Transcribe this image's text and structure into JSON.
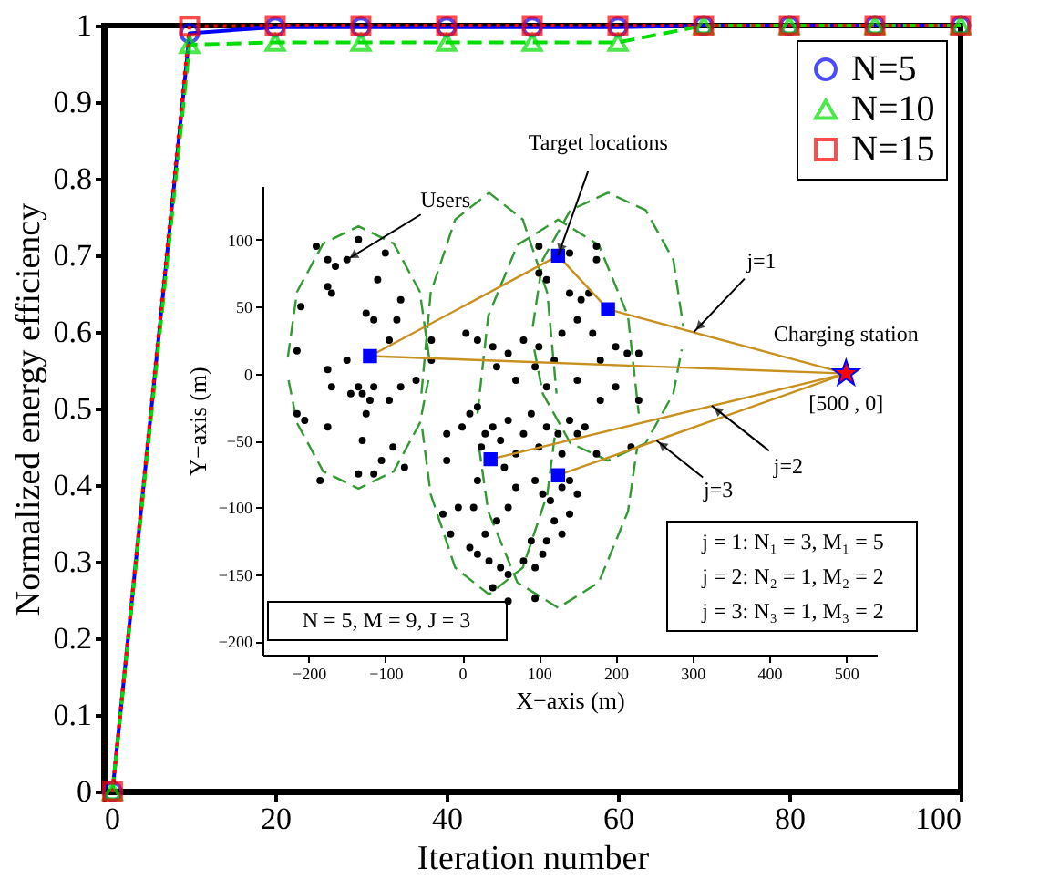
{
  "chart_data": [
    {
      "type": "line",
      "xlabel": "Iteration number",
      "ylabel": "Normalized energy efficiency",
      "x": [
        1,
        10,
        20,
        30,
        40,
        50,
        60,
        70,
        80,
        90,
        100
      ],
      "xlim": [
        0,
        100
      ],
      "xticks": [
        0,
        20,
        40,
        60,
        80,
        100
      ],
      "ylim": [
        0,
        1
      ],
      "yticks": [
        0,
        0.1,
        0.2,
        0.3,
        0.4,
        0.5,
        0.6,
        0.7,
        0.8,
        0.9,
        1
      ],
      "grid": false,
      "legend": "top right",
      "series": [
        {
          "name": "N=5",
          "color": "#0000ff",
          "marker": "circle",
          "line_style": "solid",
          "values": [
            0,
            0.99,
            0.998,
            0.998,
            0.998,
            0.998,
            0.998,
            1,
            1,
            1,
            1
          ]
        },
        {
          "name": "N=10",
          "color": "#00dd00",
          "marker": "triangle",
          "line_style": "dashed",
          "values": [
            0,
            0.975,
            0.978,
            0.978,
            0.978,
            0.978,
            0.978,
            1,
            1,
            1,
            1
          ]
        },
        {
          "name": "N=15",
          "color": "#ff0000",
          "marker": "square",
          "line_style": "dotted",
          "values": [
            0,
            0.999,
            1,
            1,
            1,
            1,
            1,
            1,
            1,
            1,
            1
          ]
        }
      ]
    },
    {
      "type": "scatter",
      "xlabel": "X−axis (m)",
      "ylabel": "Y−axis (m)",
      "xlim": [
        -260,
        540
      ],
      "xticks": [
        -200,
        -100,
        0,
        100,
        200,
        300,
        400,
        500
      ],
      "ylim": [
        -210,
        140
      ],
      "yticks": [
        -200,
        -150,
        -100,
        -50,
        0,
        50,
        100
      ],
      "grid": false,
      "series": [
        {
          "type": "line",
          "color": "#339933",
          "line_style": "dashed",
          "x": [
            -227,
            -215,
            -181,
            -135,
            -89,
            -55,
            -43
          ],
          "values": [
            12,
            61,
            97,
            110,
            97,
            61,
            12
          ]
        },
        {
          "type": "line",
          "color": "#339933",
          "line_style": "dashed",
          "x": [
            -226,
            -215,
            -181,
            -135,
            -89,
            -55,
            -44
          ],
          "values": [
            -5,
            -37,
            -73,
            -86,
            -73,
            -37,
            -5
          ]
        },
        {
          "type": "line",
          "color": "#339933",
          "line_style": "dashed",
          "x": [
            -53,
            -41,
            -9,
            35,
            79,
            111,
            123
          ],
          "values": [
            -15,
            60,
            115,
            135,
            115,
            60,
            -15
          ]
        },
        {
          "type": "line",
          "color": "#339933",
          "line_style": "dashed",
          "x": [
            -52,
            -41,
            -9,
            35,
            79,
            111,
            122
          ],
          "values": [
            -41,
            -90,
            -145,
            -165,
            -145,
            -90,
            -41
          ]
        },
        {
          "type": "line",
          "color": "#339933",
          "line_style": "dashed",
          "x": [
            20,
            34,
            72,
            125,
            178,
            216,
            230
          ],
          "values": [
            -30,
            43,
            96,
            115,
            96,
            43,
            -30
          ]
        },
        {
          "type": "line",
          "color": "#339933",
          "line_style": "dashed",
          "x": [
            22,
            34,
            72,
            125,
            178,
            216,
            228
          ],
          "values": [
            -55,
            -103,
            -156,
            -175,
            -156,
            -103,
            -55
          ]
        },
        {
          "type": "line",
          "color": "#339933",
          "line_style": "dashed",
          "x": [
            92,
            105,
            141,
            190,
            239,
            275,
            288
          ],
          "values": [
            35,
            85,
            122,
            135,
            122,
            85,
            35
          ]
        },
        {
          "type": "line",
          "color": "#339933",
          "line_style": "dashed",
          "x": [
            94,
            105,
            141,
            190,
            239,
            275,
            286
          ],
          "values": [
            18,
            -15,
            -52,
            -65,
            -52,
            -15,
            18
          ]
        },
        {
          "type": "scatter",
          "color": "#000000",
          "marker": "circle",
          "x": [
            -190,
            -175,
            -165,
            -150,
            -135,
            -100,
            -210,
            -175,
            -170,
            -110,
            -80,
            -85,
            -125,
            -115,
            -95,
            -215,
            -150,
            -175,
            -135,
            -130,
            -115,
            -145,
            -120,
            -80,
            -95,
            -215,
            -205,
            -175,
            -125,
            -90,
            -130,
            -135,
            -115,
            -105,
            -75,
            -185,
            -170,
            -60,
            -20,
            -20,
            0,
            10,
            20,
            30,
            25,
            40,
            50,
            60,
            70,
            80,
            90,
            100,
            110,
            125,
            140,
            150,
            160,
            95,
            105,
            115,
            130,
            140,
            150,
            140,
            120,
            130,
            110,
            90,
            60,
            45,
            30,
            15,
            -5,
            -25,
            10,
            20,
            35,
            50,
            60,
            80,
            95,
            105,
            -15,
            40,
            60,
            95,
            70,
            55,
            20,
            130,
            180,
            200,
            230,
            175,
            220,
            100,
            140,
            175,
            175,
            100,
            110,
            155,
            140,
            165,
            130,
            150,
            170,
            200,
            215,
            230,
            180,
            100,
            80,
            60,
            40,
            20,
            5,
            -40,
            -40,
            45,
            70,
            95,
            110,
            150,
            120
          ],
          "values": [
            95,
            85,
            80,
            85,
            100,
            90,
            50,
            65,
            60,
            70,
            55,
            40,
            45,
            40,
            25,
            17,
            10,
            3,
            -10,
            -15,
            -10,
            -15,
            -20,
            -10,
            -20,
            -30,
            -35,
            -40,
            -30,
            -55,
            -50,
            -75,
            -75,
            -65,
            -70,
            -80,
            -10,
            -5,
            -45,
            -65,
            -40,
            -30,
            -25,
            -45,
            -55,
            -40,
            -50,
            -35,
            -60,
            -45,
            -30,
            -55,
            -40,
            -45,
            -35,
            -45,
            -40,
            -80,
            -90,
            -95,
            -85,
            -80,
            -90,
            -105,
            -110,
            -120,
            -125,
            -125,
            -100,
            -110,
            -120,
            -100,
            -100,
            -105,
            -130,
            -135,
            -140,
            -145,
            -150,
            -140,
            -145,
            -135,
            -120,
            -160,
            -170,
            -168,
            -85,
            -70,
            -80,
            -60,
            -20,
            -10,
            -20,
            -60,
            -55,
            95,
            90,
            95,
            85,
            75,
            70,
            55,
            60,
            60,
            30,
            40,
            30,
            20,
            15,
            15,
            10,
            20,
            25,
            15,
            20,
            25,
            30,
            25,
            10,
            5,
            -5,
            5,
            -10,
            -5,
            10
          ]
        },
        {
          "type": "line",
          "color": "#c8901e",
          "line_style": "solid",
          "x": [
            -120,
            125,
            190,
            500
          ],
          "values": [
            13,
            88,
            48,
            0
          ]
        },
        {
          "type": "line",
          "color": "#c8901e",
          "line_style": "solid",
          "x": [
            -120,
            500
          ],
          "values": [
            13,
            0
          ]
        },
        {
          "type": "line",
          "color": "#c8901e",
          "line_style": "solid",
          "x": [
            37,
            500
          ],
          "values": [
            -64,
            0
          ]
        },
        {
          "type": "line",
          "color": "#c8901e",
          "line_style": "solid",
          "x": [
            125,
            500
          ],
          "values": [
            -76,
            0
          ]
        },
        {
          "type": "scatter",
          "color": "#0000ff",
          "marker": "square",
          "x": [
            -120,
            125,
            190,
            37,
            125
          ],
          "values": [
            13,
            88,
            48,
            -64,
            -76
          ]
        },
        {
          "type": "scatter",
          "color": "#ff0000",
          "marker": "star",
          "x": [
            500
          ],
          "values": [
            0
          ]
        }
      ],
      "annotations": [
        {
          "text": "Users",
          "x": -150,
          "y": 85
        },
        {
          "text": "Target locations",
          "x": 125,
          "y": 88
        },
        {
          "text": "j=1",
          "x": 302,
          "y": 31
        },
        {
          "text": "j=2",
          "x": 325,
          "y": -24
        },
        {
          "text": "j=3",
          "x": 253,
          "y": -50
        },
        {
          "text": "Charging station",
          "x": 500,
          "y": 0
        },
        {
          "text": "[500 , 0]",
          "x": 500,
          "y": 0
        },
        "N = 5, M = 9, J = 3",
        "j = 1: N₁ = 3, M₁ = 5",
        "j = 2: N₂ = 1, M₂ = 2",
        "j = 3: N₃ = 1, M₃ = 2"
      ]
    }
  ]
}
